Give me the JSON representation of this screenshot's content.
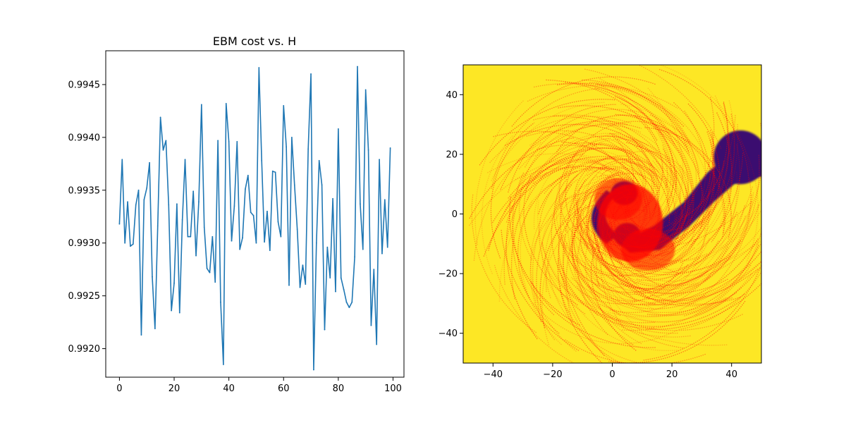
{
  "chart_data": [
    {
      "type": "line",
      "title": "EBM cost vs. H",
      "xlabel": "",
      "ylabel": "",
      "xlim": [
        -5,
        104
      ],
      "ylim": [
        0.99173,
        0.99482
      ],
      "xticks": [
        "0",
        "20",
        "40",
        "60",
        "80",
        "100"
      ],
      "yticks": [
        "0.9920",
        "0.9925",
        "0.9930",
        "0.9935",
        "0.9940",
        "0.9945"
      ],
      "grid": false,
      "series": [
        {
          "color": "#1f77b4",
          "x": [
            0,
            1,
            2,
            3,
            4,
            5,
            6,
            7,
            8,
            9,
            10,
            11,
            12,
            13,
            14,
            15,
            16,
            17,
            18,
            19,
            20,
            21,
            22,
            23,
            24,
            25,
            26,
            27,
            28,
            29,
            30,
            31,
            32,
            33,
            34,
            35,
            36,
            37,
            38,
            39,
            40,
            41,
            42,
            43,
            44,
            45,
            46,
            47,
            48,
            49,
            50,
            51,
            52,
            53,
            54,
            55,
            56,
            57,
            58,
            59,
            60,
            61,
            62,
            63,
            64,
            65,
            66,
            67,
            68,
            69,
            70,
            71,
            72,
            73,
            74,
            75,
            76,
            77,
            78,
            79,
            80,
            81,
            82,
            83,
            84,
            85,
            86,
            87,
            88,
            89,
            90,
            91,
            92,
            93,
            94,
            95,
            96,
            97,
            98,
            99
          ],
          "values": [
            0.99318,
            0.99379,
            0.993,
            0.99339,
            0.99297,
            0.99299,
            0.99336,
            0.9935,
            0.99213,
            0.99341,
            0.99352,
            0.99376,
            0.99268,
            0.99219,
            0.99316,
            0.99419,
            0.99388,
            0.99397,
            0.99336,
            0.99236,
            0.99262,
            0.99337,
            0.99234,
            0.99322,
            0.99379,
            0.99306,
            0.99306,
            0.99349,
            0.99288,
            0.99339,
            0.99431,
            0.99315,
            0.99276,
            0.99272,
            0.99306,
            0.99263,
            0.99397,
            0.99244,
            0.99185,
            0.99432,
            0.99396,
            0.99302,
            0.99335,
            0.99396,
            0.99294,
            0.99305,
            0.99351,
            0.99364,
            0.99329,
            0.99326,
            0.993,
            0.99466,
            0.99378,
            0.99301,
            0.9933,
            0.99293,
            0.99368,
            0.99367,
            0.9932,
            0.99306,
            0.9943,
            0.99391,
            0.9926,
            0.994,
            0.99355,
            0.99313,
            0.99258,
            0.99279,
            0.99261,
            0.99389,
            0.9946,
            0.9918,
            0.993,
            0.99378,
            0.99355,
            0.99218,
            0.99296,
            0.99267,
            0.99342,
            0.99254,
            0.99408,
            0.99267,
            0.99256,
            0.99244,
            0.99239,
            0.99244,
            0.99287,
            0.99467,
            0.99337,
            0.99294,
            0.99445,
            0.99388,
            0.99222,
            0.99275,
            0.99204,
            0.99379,
            0.9929,
            0.99341,
            0.99296,
            0.9939
          ]
        }
      ]
    },
    {
      "type": "heatmap",
      "title": "",
      "xlabel": "",
      "ylabel": "",
      "xlim": [
        -50,
        50
      ],
      "ylim": [
        -50,
        50
      ],
      "xticks": [
        "−40",
        "−20",
        "0",
        "20",
        "40"
      ],
      "yticks": [
        "−40",
        "−20",
        "0",
        "20",
        "40"
      ],
      "background_color": "#fde725",
      "dark_region_color": "#3b0f70",
      "trajectory_color": "#ff0000",
      "dark_regions": [
        {
          "shape": "small-blob",
          "center": [
            4,
            7
          ],
          "rx": 4.5,
          "ry": 4
        },
        {
          "shape": "small-blob",
          "center": [
            5,
            -7
          ],
          "rx": 4.5,
          "ry": 4
        },
        {
          "shape": "arc",
          "center": [
            -7,
            0
          ],
          "description": "left arc"
        },
        {
          "shape": "band",
          "from": [
            0,
            -8
          ],
          "to": [
            42,
            21
          ],
          "description": "diagonal dark band to upper right"
        }
      ]
    }
  ]
}
